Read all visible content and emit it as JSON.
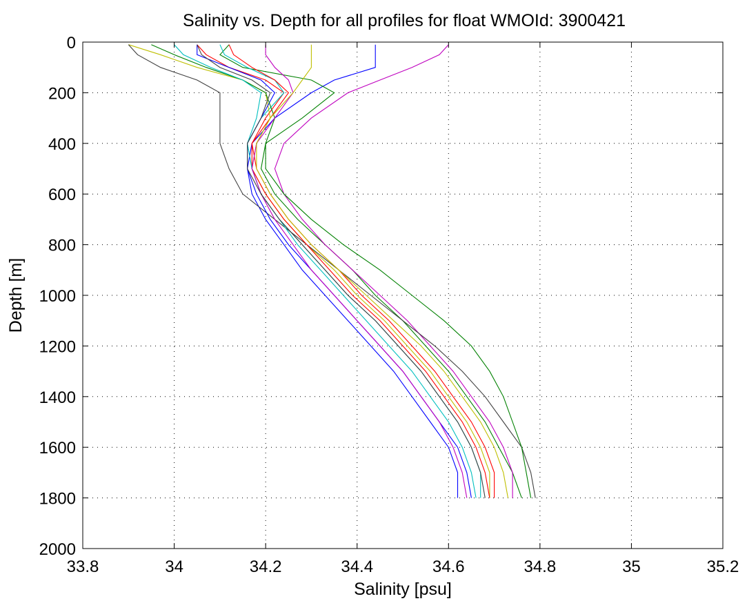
{
  "chart_data": {
    "type": "line",
    "title": "Salinity vs. Depth for all profiles for float WMOId: 3900421",
    "xlabel": "Salinity [psu]",
    "ylabel": "Depth [m]",
    "xlim": [
      33.8,
      35.2
    ],
    "ylim": [
      2000,
      0
    ],
    "y_reversed": true,
    "x_ticks": [
      "33.8",
      "34",
      "34.2",
      "34.4",
      "34.6",
      "34.8",
      "35",
      "35.2"
    ],
    "y_ticks": [
      "0",
      "200",
      "400",
      "600",
      "800",
      "1000",
      "1200",
      "1400",
      "1600",
      "1800",
      "2000"
    ],
    "grid": true,
    "legend": "none",
    "colors": [
      "#0000ff",
      "#008000",
      "#ff0000",
      "#00bfbf",
      "#bf00bf",
      "#bfbf00",
      "#404040"
    ],
    "depth_levels": [
      10,
      50,
      100,
      150,
      200,
      300,
      400,
      500,
      600,
      700,
      800,
      900,
      1000,
      1100,
      1200,
      1300,
      1400,
      1500,
      1600,
      1700,
      1800
    ],
    "series": [
      {
        "color": "#0000ff",
        "values": [
          34.44,
          34.44,
          34.44,
          34.35,
          34.3,
          34.22,
          34.17,
          34.16,
          34.17,
          34.2,
          34.24,
          34.28,
          34.33,
          34.38,
          34.43,
          34.48,
          34.52,
          34.56,
          34.6,
          34.62,
          34.62
        ]
      },
      {
        "color": "#008000",
        "values": [
          34.12,
          34.1,
          34.15,
          34.3,
          34.35,
          34.28,
          34.2,
          34.19,
          34.22,
          34.27,
          34.33,
          34.39,
          34.44,
          34.5,
          34.55,
          34.6,
          34.64,
          34.68,
          34.71,
          34.74,
          34.76
        ]
      },
      {
        "color": "#ff0000",
        "values": [
          34.05,
          34.07,
          34.12,
          34.2,
          34.24,
          34.2,
          34.17,
          34.18,
          34.21,
          34.25,
          34.3,
          34.36,
          34.41,
          34.47,
          34.52,
          34.57,
          34.61,
          34.65,
          34.68,
          34.7,
          34.7
        ]
      },
      {
        "color": "#00bfbf",
        "values": [
          34.1,
          34.11,
          34.16,
          34.22,
          34.24,
          34.19,
          34.16,
          34.17,
          34.19,
          34.23,
          34.28,
          34.33,
          34.38,
          34.44,
          34.49,
          34.54,
          34.58,
          34.62,
          34.65,
          34.67,
          34.67
        ]
      },
      {
        "color": "#bf00bf",
        "values": [
          34.6,
          34.58,
          34.52,
          34.45,
          34.38,
          34.3,
          34.24,
          34.22,
          34.24,
          34.28,
          34.33,
          34.39,
          34.45,
          34.51,
          34.56,
          34.61,
          34.65,
          34.69,
          34.72,
          34.74,
          34.74
        ]
      },
      {
        "color": "#bfbf00",
        "values": [
          33.9,
          33.97,
          34.05,
          34.15,
          34.2,
          34.21,
          34.18,
          34.17,
          34.2,
          34.24,
          34.29,
          34.35,
          34.4,
          34.46,
          34.51,
          34.56,
          34.6,
          34.64,
          34.67,
          34.69,
          34.69
        ]
      },
      {
        "color": "#404040",
        "values": [
          33.9,
          33.92,
          33.97,
          34.05,
          34.1,
          34.1,
          34.1,
          34.12,
          34.15,
          34.22,
          34.29,
          34.36,
          34.43,
          34.5,
          34.57,
          34.63,
          34.68,
          34.72,
          34.76,
          34.78,
          34.79
        ]
      },
      {
        "color": "#0000ff",
        "values": [
          34.05,
          34.05,
          34.12,
          34.19,
          34.22,
          34.19,
          34.16,
          34.16,
          34.18,
          34.21,
          34.25,
          34.3,
          34.35,
          34.4,
          34.45,
          34.5,
          34.54,
          34.58,
          34.62,
          34.64,
          34.65
        ]
      },
      {
        "color": "#008000",
        "values": [
          33.95,
          34.0,
          34.07,
          34.15,
          34.2,
          34.22,
          34.2,
          34.2,
          34.24,
          34.3,
          34.37,
          34.45,
          34.52,
          34.59,
          34.65,
          34.69,
          34.72,
          34.74,
          34.76,
          34.77,
          34.78
        ]
      },
      {
        "color": "#ff0000",
        "values": [
          34.12,
          34.13,
          34.17,
          34.22,
          34.25,
          34.21,
          34.17,
          34.17,
          34.2,
          34.24,
          34.29,
          34.34,
          34.39,
          34.45,
          34.5,
          34.55,
          34.59,
          34.63,
          34.66,
          34.68,
          34.69
        ]
      },
      {
        "color": "#00bfbf",
        "values": [
          34.0,
          34.02,
          34.08,
          34.15,
          34.19,
          34.18,
          34.16,
          34.17,
          34.19,
          34.23,
          34.27,
          34.32,
          34.37,
          34.42,
          34.47,
          34.52,
          34.56,
          34.6,
          34.63,
          34.65,
          34.66
        ]
      },
      {
        "color": "#bf00bf",
        "values": [
          34.2,
          34.2,
          34.22,
          34.25,
          34.26,
          34.22,
          34.18,
          34.17,
          34.19,
          34.22,
          34.26,
          34.3,
          34.35,
          34.4,
          34.45,
          34.5,
          34.54,
          34.58,
          34.61,
          34.63,
          34.64
        ]
      },
      {
        "color": "#bfbf00",
        "values": [
          34.3,
          34.3,
          34.3,
          34.28,
          34.26,
          34.21,
          34.18,
          34.18,
          34.21,
          34.25,
          34.3,
          34.36,
          34.42,
          34.48,
          34.54,
          34.59,
          34.63,
          34.67,
          34.7,
          34.72,
          34.73
        ]
      },
      {
        "color": "#404040",
        "values": [
          34.05,
          34.06,
          34.1,
          34.17,
          34.21,
          34.19,
          34.16,
          34.16,
          34.19,
          34.23,
          34.28,
          34.33,
          34.38,
          34.44,
          34.49,
          34.54,
          34.58,
          34.62,
          34.65,
          34.67,
          34.68
        ]
      }
    ]
  }
}
